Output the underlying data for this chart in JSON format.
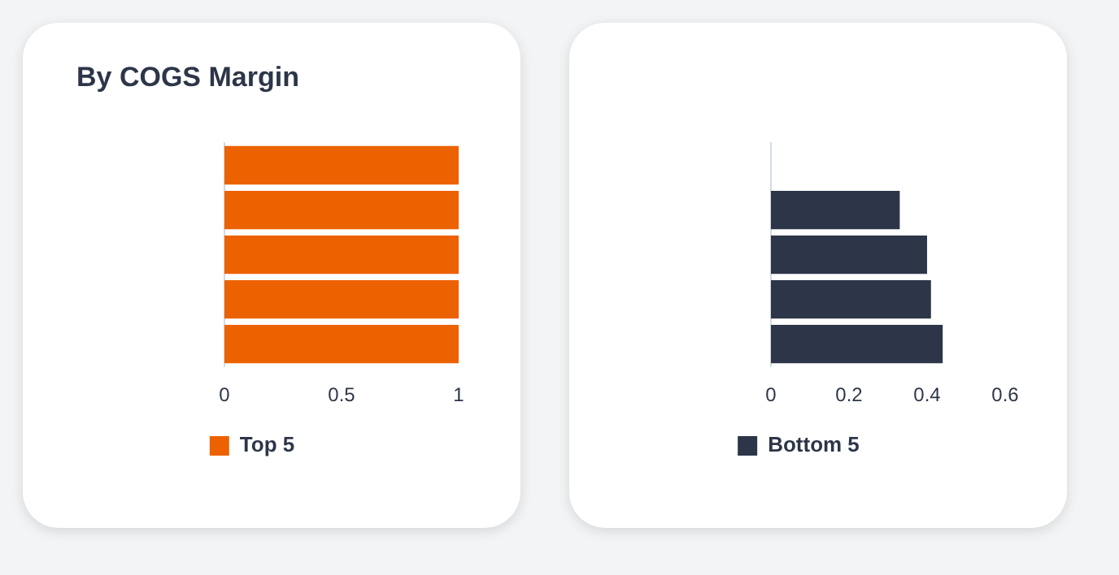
{
  "chart_data": [
    {
      "type": "bar",
      "title": "By COGS Margin",
      "orientation": "horizontal",
      "categories": [
        null,
        null,
        null,
        null,
        null
      ],
      "series": [
        {
          "name": "Top 5",
          "color": "#ec6200",
          "values": [
            1,
            1,
            1,
            1,
            1
          ]
        }
      ],
      "xlim": [
        0,
        1
      ],
      "xticks": [
        0,
        0.5,
        1
      ],
      "grid": false,
      "legend": "bottom"
    },
    {
      "type": "bar",
      "orientation": "horizontal",
      "categories": [
        null,
        null,
        null,
        null,
        null
      ],
      "series": [
        {
          "name": "Bottom 5",
          "color": "#2d3648",
          "values": [
            0,
            0.33,
            0.4,
            0.41,
            0.44
          ]
        }
      ],
      "xlim": [
        0,
        0.6
      ],
      "xticks": [
        0,
        0.2,
        0.4,
        0.6
      ],
      "grid": false,
      "legend": "bottom"
    }
  ]
}
